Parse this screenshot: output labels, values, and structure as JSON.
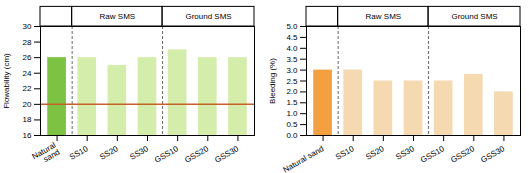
{
  "chart_data": [
    {
      "type": "bar",
      "ylabel": "Flowability (cm)",
      "categories": [
        "Natural\nsand",
        "SS10",
        "SS20",
        "SS30",
        "GSS10",
        "GSS20",
        "GSS30"
      ],
      "values": [
        26,
        26,
        25,
        26,
        27,
        26,
        26
      ],
      "colors": [
        "#7DC242",
        "#d4edaa",
        "#d4edaa",
        "#d4edaa",
        "#d4edaa",
        "#d4edaa",
        "#d4edaa"
      ],
      "ylim": [
        16,
        30
      ],
      "yticks": [
        16,
        18,
        20,
        22,
        24,
        26,
        28,
        30
      ],
      "grid": false,
      "reference_line": {
        "value": 20,
        "color": "#C8602A"
      },
      "groups": [
        {
          "label": "Raw SMS",
          "categories": [
            "SS10",
            "SS20",
            "SS30"
          ]
        },
        {
          "label": "Ground SMS",
          "categories": [
            "GSS10",
            "GSS20",
            "GSS30"
          ]
        }
      ]
    },
    {
      "type": "bar",
      "ylabel": "Bleeding (%)",
      "categories": [
        "Natural sand",
        "SS10",
        "SS20",
        "SS30",
        "GSS10",
        "GSS20",
        "GSS30"
      ],
      "values": [
        3.0,
        3.0,
        2.5,
        2.5,
        2.5,
        2.8,
        2.0
      ],
      "colors": [
        "#F4A040",
        "#f5d9b0",
        "#f5d9b0",
        "#f5d9b0",
        "#f5d9b0",
        "#f5d9b0",
        "#f5d9b0"
      ],
      "ylim": [
        0,
        5
      ],
      "yticks": [
        {
          "value": 0,
          "label": "0.0"
        },
        0.5,
        {
          "value": 1,
          "label": "1.0"
        },
        1.5,
        {
          "value": 2,
          "label": "2.0"
        },
        2.5,
        {
          "value": 3,
          "label": "3.0"
        },
        3.5,
        {
          "value": 4,
          "label": "4.0"
        },
        4.5,
        {
          "value": 5,
          "label": "5.0"
        }
      ],
      "grid": false,
      "groups": [
        {
          "label": "Raw SMS",
          "categories": [
            "SS10",
            "SS20",
            "SS30"
          ]
        },
        {
          "label": "Ground SMS",
          "categories": [
            "GSS10",
            "GSS20",
            "GSS30"
          ]
        }
      ]
    }
  ]
}
